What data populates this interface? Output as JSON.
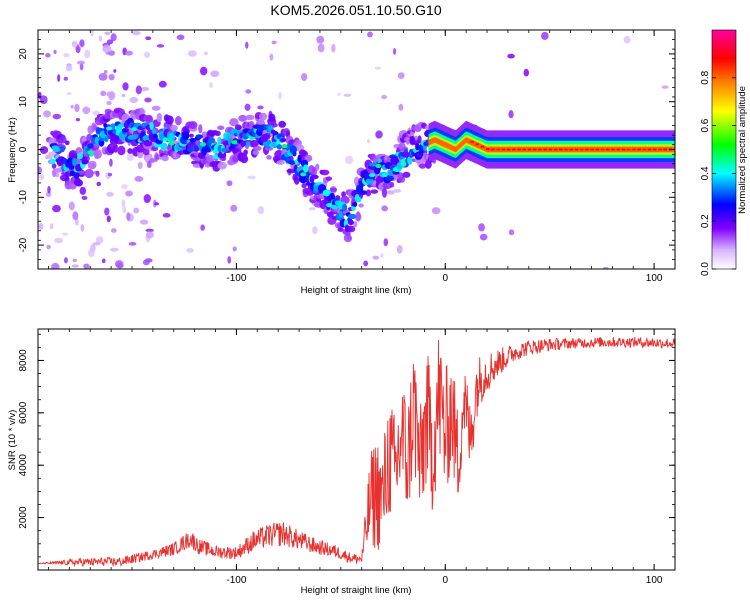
{
  "title": "KOM5.2026.051.10.50.G10",
  "chart_data": [
    {
      "type": "heatmap",
      "name": "spectrogram",
      "xlabel": "Height of straight line (km)",
      "ylabel": "Frequency (Hz)",
      "xlim": [
        -195,
        110
      ],
      "ylim": [
        -25,
        25
      ],
      "xticks": [
        -100,
        0,
        100
      ],
      "yticks": [
        -20,
        -10,
        0,
        10,
        20
      ],
      "colorbar": {
        "label": "Normalized spectral amplitude",
        "range": [
          0,
          1
        ],
        "ticks": [
          0.0,
          0.2,
          0.4,
          0.6,
          0.8
        ],
        "colors": [
          "#ffffff",
          "#9d00ff",
          "#0000ff",
          "#00ffff",
          "#00ff00",
          "#ffff00",
          "#ff8000",
          "#ff0000",
          "#ff00a0"
        ]
      },
      "ridge": {
        "x": [
          -185,
          -178,
          -172,
          -166,
          -160,
          -150,
          -140,
          -130,
          -120,
          -110,
          -100,
          -92,
          -85,
          -78,
          -72,
          -65,
          -58,
          -52,
          -46,
          -42,
          -38,
          -33,
          -28,
          -22,
          -16,
          -10,
          -5,
          0,
          5,
          10,
          15,
          20,
          30,
          50,
          70,
          90,
          110
        ],
        "y": [
          -1,
          -4,
          -2,
          3,
          4,
          4,
          3,
          2,
          1,
          0,
          2,
          3,
          3,
          1,
          -2,
          -6,
          -9,
          -12,
          -15,
          -10,
          -6,
          -4,
          -5,
          -2,
          0,
          1,
          2,
          1,
          0,
          2,
          1,
          0,
          0,
          0,
          0,
          0,
          0
        ]
      }
    },
    {
      "type": "line",
      "name": "snr",
      "xlabel": "Height of straight line (km)",
      "ylabel": "SNR (10 * v/v)",
      "xlim": [
        -195,
        110
      ],
      "ylim": [
        0,
        9200
      ],
      "xticks": [
        -100,
        0,
        100
      ],
      "yticks": [
        2000,
        4000,
        6000,
        8000
      ],
      "series": [
        {
          "name": "SNR",
          "color": "#e8302e",
          "x": [
            -195,
            -175,
            -155,
            -140,
            -130,
            -122,
            -118,
            -110,
            -100,
            -92,
            -85,
            -78,
            -72,
            -62,
            -52,
            -45,
            -40,
            -36,
            -33,
            -30,
            -27,
            -24,
            -21,
            -18,
            -15,
            -12,
            -9,
            -6,
            -3,
            0,
            3,
            6,
            9,
            12,
            15,
            18,
            22,
            27,
            33,
            40,
            50,
            60,
            75,
            90,
            110
          ],
          "y": [
            250,
            300,
            320,
            600,
            800,
            1200,
            900,
            700,
            650,
            1100,
            1300,
            1400,
            1200,
            900,
            700,
            450,
            420,
            2600,
            3000,
            2700,
            4400,
            3600,
            5200,
            4100,
            6400,
            3800,
            5900,
            4500,
            6700,
            5100,
            6200,
            4200,
            6600,
            4900,
            7000,
            7400,
            7700,
            8000,
            8300,
            8500,
            8600,
            8650,
            8700,
            8700,
            8650
          ],
          "noise": [
            0,
            150,
            180,
            180,
            250,
            350,
            300,
            250,
            250,
            400,
            450,
            500,
            400,
            300,
            250,
            200,
            200,
            1800,
            2300,
            2000,
            2500,
            2300,
            2600,
            2300,
            2800,
            2400,
            2800,
            2400,
            2800,
            2600,
            2200,
            2100,
            1600,
            1500,
            1200,
            900,
            700,
            500,
            350,
            300,
            250,
            200,
            200,
            200,
            200
          ]
        }
      ]
    }
  ]
}
